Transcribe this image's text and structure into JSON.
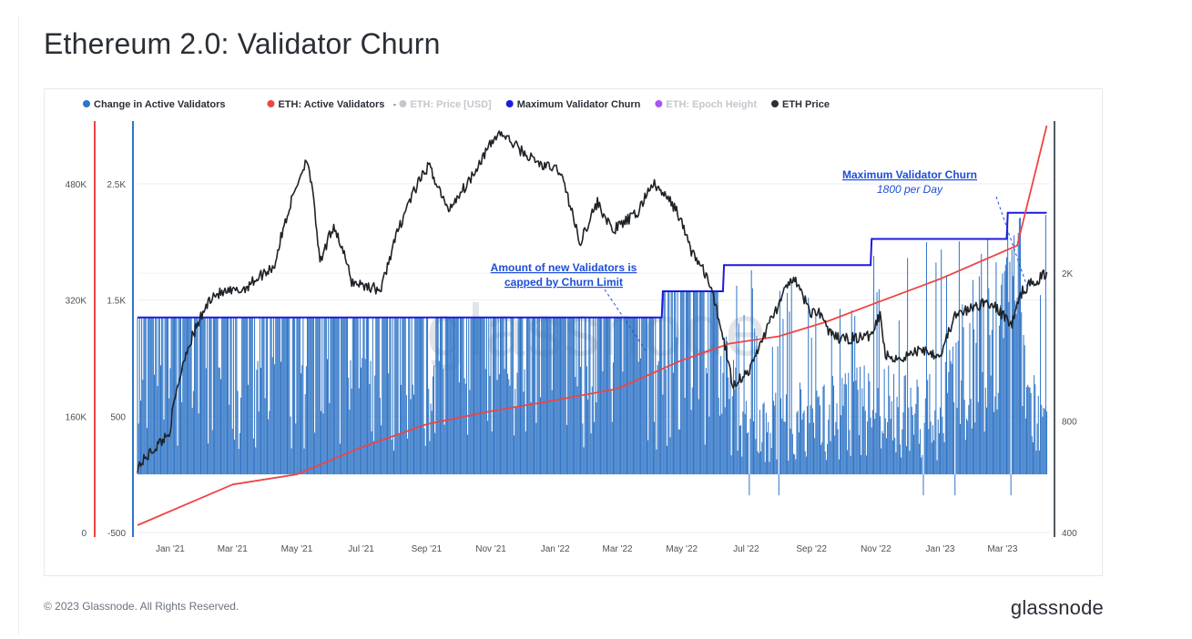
{
  "title": "Ethereum 2.0: Validator Churn",
  "footer": {
    "copyright": "© 2023 Glassnode. All Rights Reserved.",
    "logo": "glassnode"
  },
  "watermark": "glassnode",
  "legend": [
    {
      "label": "Change in Active Validators",
      "color": "#2f74c6",
      "muted": false
    },
    {
      "label": "-",
      "color": "",
      "muted": false,
      "dash": true
    },
    {
      "label": "ETH: Active Validators",
      "color": "#ef4444",
      "muted": false
    },
    {
      "label": "ETH: Price [USD]",
      "color": "#c4c7cc",
      "muted": true
    },
    {
      "label": "Maximum Validator Churn",
      "color": "#1d1ae0",
      "muted": false
    },
    {
      "label": "ETH: Epoch Height",
      "color": "#a855f7",
      "muted": true
    },
    {
      "label": "ETH Price",
      "color": "#2a2f36",
      "muted": false
    }
  ],
  "annotations": {
    "churn_title": "Maximum Validator Churn",
    "churn_sub": "1800 per Day",
    "capped_line1": "Amount of new Validators is",
    "capped_line2": "capped by Churn Limit"
  },
  "axes": {
    "validators_ticks": [
      "480K",
      "320K",
      "160K",
      "0"
    ],
    "change_ticks": [
      "2.5K",
      "1.5K",
      "500",
      "-500"
    ],
    "price_ticks": [
      "2K",
      "800",
      "400"
    ],
    "x_ticks": [
      "Jan '21",
      "Mar '21",
      "May '21",
      "Jul '21",
      "Sep '21",
      "Nov '21",
      "Jan '22",
      "Mar '22",
      "May '22",
      "Jul '22",
      "Sep '22",
      "Nov '22",
      "Jan '23",
      "Mar '23"
    ]
  },
  "chart_data": {
    "type": "line",
    "x_range": [
      "2020-12-01",
      "2023-04-15"
    ],
    "series": [
      {
        "name": "ETH: Active Validators",
        "axis": "left-outer",
        "scale": "linear",
        "ylim": [
          0,
          560000
        ],
        "dates": [
          "2020-12-01",
          "2021-03-01",
          "2021-05-01",
          "2021-07-01",
          "2021-09-01",
          "2021-11-01",
          "2022-01-01",
          "2022-03-01",
          "2022-05-01",
          "2022-06-15",
          "2022-08-01",
          "2022-09-15",
          "2022-11-01",
          "2023-01-01",
          "2023-03-15",
          "2023-04-12"
        ],
        "values": [
          10000,
          66000,
          80000,
          117000,
          149000,
          167000,
          182000,
          198000,
          237000,
          260000,
          270000,
          290000,
          316000,
          349000,
          395000,
          560000
        ]
      },
      {
        "name": "Change in Active Validators",
        "axis": "left-inner",
        "scale": "linear",
        "ylim": [
          -500,
          3000
        ],
        "dates": [
          "2020-12-01",
          "2021-04-01",
          "2021-08-01",
          "2021-12-01",
          "2022-03-20",
          "2022-04-20",
          "2022-06-01",
          "2022-07-01",
          "2022-09-01",
          "2022-11-01",
          "2023-01-01",
          "2023-02-15",
          "2023-04-12"
        ],
        "values": [
          900,
          900,
          900,
          900,
          900,
          1125,
          1125,
          500,
          600,
          700,
          600,
          1600,
          400
        ]
      },
      {
        "name": "Maximum Validator Churn",
        "axis": "left-inner",
        "scale": "linear",
        "ylim": [
          -500,
          3000
        ],
        "dates": [
          "2020-12-01",
          "2022-04-12",
          "2022-04-13",
          "2022-06-09",
          "2022-06-10",
          "2022-10-27",
          "2022-10-28",
          "2023-03-05",
          "2023-03-06",
          "2023-04-12"
        ],
        "values": [
          1350,
          1350,
          1575,
          1575,
          1800,
          1800,
          2025,
          2025,
          2250,
          2250
        ]
      },
      {
        "name": "ETH Price",
        "axis": "right",
        "scale": "log",
        "ylim": [
          400,
          5000
        ],
        "dates": [
          "2020-12-01",
          "2020-12-31",
          "2021-01-15",
          "2021-02-10",
          "2021-03-10",
          "2021-04-10",
          "2021-05-11",
          "2021-05-23",
          "2021-06-05",
          "2021-06-22",
          "2021-07-20",
          "2021-08-15",
          "2021-09-03",
          "2021-09-21",
          "2021-10-10",
          "2021-11-09",
          "2021-12-03",
          "2021-12-20",
          "2022-01-05",
          "2022-01-24",
          "2022-02-10",
          "2022-02-24",
          "2022-03-20",
          "2022-04-03",
          "2022-04-25",
          "2022-05-10",
          "2022-05-25",
          "2022-06-18",
          "2022-07-05",
          "2022-08-01",
          "2022-08-14",
          "2022-09-01",
          "2022-09-07",
          "2022-09-20",
          "2022-10-01",
          "2022-10-25",
          "2022-11-05",
          "2022-11-10",
          "2022-11-25",
          "2022-12-15",
          "2023-01-01",
          "2023-01-15",
          "2023-02-15",
          "2023-03-10",
          "2023-03-20",
          "2023-04-12"
        ],
        "values": [
          600,
          740,
          1200,
          1750,
          1800,
          2100,
          4100,
          2100,
          2700,
          1900,
          1800,
          3100,
          3900,
          2950,
          3500,
          4800,
          4200,
          3900,
          3800,
          2400,
          3100,
          2600,
          2900,
          3500,
          3000,
          2300,
          1950,
          1000,
          1100,
          1650,
          1950,
          1550,
          1600,
          1350,
          1330,
          1350,
          1550,
          1200,
          1180,
          1250,
          1200,
          1530,
          1680,
          1460,
          1800,
          2000
        ]
      }
    ]
  }
}
